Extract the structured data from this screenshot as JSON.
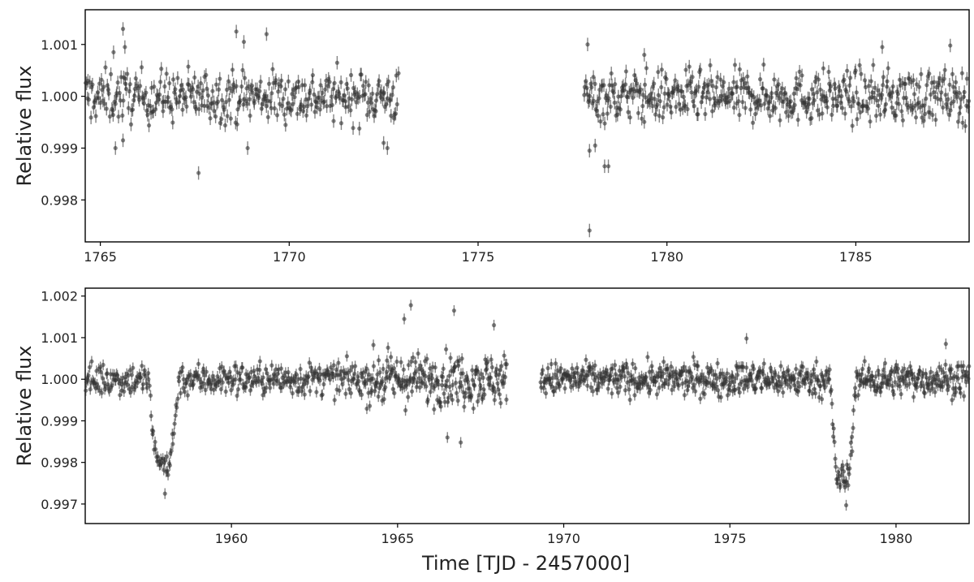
{
  "chart_data": [
    {
      "type": "scatter",
      "title": "",
      "xlabel": "",
      "ylabel": "Relative flux",
      "xlim": [
        1764.6,
        1788.0
      ],
      "ylim": [
        0.99719,
        1.00167
      ],
      "xticks": [
        1765,
        1770,
        1775,
        1780,
        1785
      ],
      "xtick_labels": [
        "1765",
        "1770",
        "1775",
        "1780",
        "1785"
      ],
      "yticks": [
        0.998,
        0.999,
        1.0,
        1.001
      ],
      "ytick_labels": [
        "0.998",
        "0.999",
        "1.000",
        "1.001"
      ],
      "grid": false,
      "marker_color": "#333333",
      "marker_alpha": 0.6,
      "error_bar": 0.00013,
      "segments": [
        {
          "x_range": [
            1764.6,
            1772.9
          ],
          "baseline": 1.0,
          "scatter": 0.00045,
          "n_points": 360,
          "events": []
        },
        {
          "x_range": [
            1777.8,
            1788.0
          ],
          "baseline": 1.0,
          "scatter": 0.00045,
          "n_points": 470,
          "events": []
        }
      ],
      "highlight_points": [
        {
          "x": 1765.6,
          "y": 1.0013
        },
        {
          "x": 1765.65,
          "y": 1.00095
        },
        {
          "x": 1765.35,
          "y": 1.00085
        },
        {
          "x": 1765.4,
          "y": 0.999
        },
        {
          "x": 1765.6,
          "y": 0.99915
        },
        {
          "x": 1767.6,
          "y": 0.99852
        },
        {
          "x": 1768.6,
          "y": 1.00125
        },
        {
          "x": 1768.8,
          "y": 1.00105
        },
        {
          "x": 1769.4,
          "y": 1.0012
        },
        {
          "x": 1768.9,
          "y": 0.999
        },
        {
          "x": 1772.6,
          "y": 0.999
        },
        {
          "x": 1772.5,
          "y": 0.9991
        },
        {
          "x": 1777.95,
          "y": 0.99741
        },
        {
          "x": 1777.95,
          "y": 0.99895
        },
        {
          "x": 1778.1,
          "y": 0.99905
        },
        {
          "x": 1778.35,
          "y": 0.99865
        },
        {
          "x": 1778.45,
          "y": 0.99865
        },
        {
          "x": 1777.9,
          "y": 1.001
        },
        {
          "x": 1785.7,
          "y": 1.00095
        },
        {
          "x": 1787.5,
          "y": 1.00098
        },
        {
          "x": 1779.4,
          "y": 1.0008
        }
      ]
    },
    {
      "type": "scatter",
      "title": "",
      "xlabel": "Time [TJD - 2457000]",
      "ylabel": "Relative flux",
      "xlim": [
        1955.6,
        1982.2
      ],
      "ylim": [
        0.99653,
        1.00219
      ],
      "xticks": [
        1960,
        1965,
        1970,
        1975,
        1980
      ],
      "xtick_labels": [
        "1960",
        "1965",
        "1970",
        "1975",
        "1980"
      ],
      "yticks": [
        0.997,
        0.998,
        0.999,
        1.0,
        1.001,
        1.002
      ],
      "ytick_labels": [
        "0.997",
        "0.998",
        "0.999",
        "1.000",
        "1.001",
        "1.002"
      ],
      "grid": false,
      "marker_color": "#333333",
      "marker_alpha": 0.6,
      "error_bar": 0.00013,
      "segments": [
        {
          "x_range": [
            1955.6,
            1961.0
          ],
          "baseline": 1.0,
          "scatter": 0.00035,
          "n_points": 230,
          "events": [
            {
              "center": 1957.95,
              "half_width": 0.45,
              "depth": 0.002
            }
          ]
        },
        {
          "x_range": [
            1961.0,
            1964.0
          ],
          "baseline": 1.0,
          "scatter": 0.00035,
          "n_points": 130,
          "events": []
        },
        {
          "x_range": [
            1964.0,
            1968.3
          ],
          "baseline": 1.0,
          "scatter": 0.00055,
          "n_points": 230,
          "events": []
        },
        {
          "x_range": [
            1969.3,
            1978.0
          ],
          "baseline": 1.0,
          "scatter": 0.00035,
          "n_points": 430,
          "events": []
        },
        {
          "x_range": [
            1978.0,
            1982.2
          ],
          "baseline": 1.0,
          "scatter": 0.00035,
          "n_points": 210,
          "events": [
            {
              "center": 1978.4,
              "half_width": 0.38,
              "depth": 0.0024
            }
          ]
        }
      ],
      "highlight_points": [
        {
          "x": 1965.4,
          "y": 1.00178
        },
        {
          "x": 1966.7,
          "y": 1.00165
        },
        {
          "x": 1965.2,
          "y": 1.00145
        },
        {
          "x": 1967.9,
          "y": 1.0013
        },
        {
          "x": 1978.5,
          "y": 0.99697
        },
        {
          "x": 1958.0,
          "y": 0.99725
        },
        {
          "x": 1966.9,
          "y": 0.99848
        },
        {
          "x": 1966.5,
          "y": 0.9986
        },
        {
          "x": 1975.5,
          "y": 1.00098
        },
        {
          "x": 1981.5,
          "y": 1.00085
        }
      ]
    }
  ]
}
